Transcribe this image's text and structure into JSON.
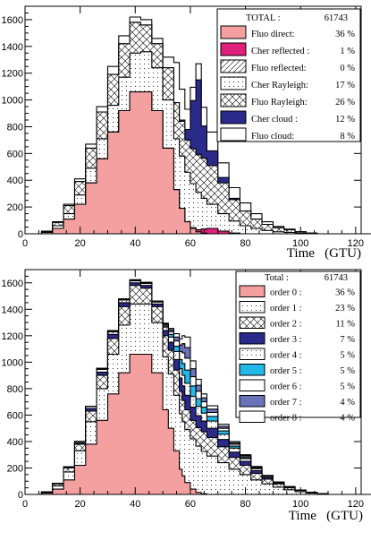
{
  "chart_data": [
    {
      "type": "area",
      "stacked": true,
      "xlabel": "Time   (GTU)",
      "ylabel": "",
      "xlim": [
        0,
        122
      ],
      "ylim": [
        0,
        1700
      ],
      "x_ticks": [
        0,
        20,
        40,
        60,
        80,
        100,
        120
      ],
      "y_ticks": [
        0,
        200,
        400,
        600,
        800,
        1000,
        1200,
        1400,
        1600
      ],
      "legend_header": {
        "label": "TOTAL :",
        "value": "61743"
      },
      "x": [
        6,
        10,
        14,
        18,
        22,
        26,
        30,
        34,
        38,
        42,
        46,
        50,
        54,
        56,
        58,
        60,
        62,
        64,
        66,
        70,
        74,
        78,
        82,
        86,
        90,
        94,
        98,
        102,
        106,
        110,
        114,
        118,
        122
      ],
      "series": [
        {
          "name": "Fluo direct:",
          "percent": "36 %",
          "color": "#f4a0a0",
          "pattern": "solid",
          "values": [
            10,
            40,
            110,
            220,
            380,
            560,
            760,
            920,
            1060,
            1060,
            920,
            640,
            330,
            190,
            90,
            40,
            15,
            5,
            0,
            0,
            0,
            0,
            0,
            0,
            0,
            0,
            0,
            0,
            0,
            0,
            0,
            0,
            0
          ]
        },
        {
          "name": "Cher reflected :",
          "percent": "1 %",
          "color": "#e0207a",
          "pattern": "solid",
          "values": [
            0,
            0,
            0,
            0,
            0,
            0,
            0,
            0,
            0,
            0,
            0,
            0,
            0,
            0,
            0,
            5,
            15,
            30,
            40,
            20,
            5,
            0,
            0,
            0,
            0,
            0,
            0,
            0,
            0,
            0,
            0,
            0,
            0
          ]
        },
        {
          "name": "Fluo reflected:",
          "percent": "0 %",
          "color": "#ffffff",
          "pattern": "hatch",
          "values": [
            0,
            0,
            0,
            0,
            0,
            0,
            0,
            0,
            0,
            0,
            0,
            0,
            0,
            0,
            0,
            0,
            0,
            0,
            0,
            0,
            0,
            0,
            0,
            0,
            0,
            0,
            0,
            0,
            0,
            0,
            0,
            0,
            0
          ]
        },
        {
          "name": "Cher Rayleigh:",
          "percent": "17 %",
          "color": "#ffffff",
          "pattern": "dots",
          "values": [
            5,
            20,
            40,
            70,
            110,
            150,
            200,
            250,
            290,
            300,
            320,
            360,
            380,
            390,
            370,
            330,
            280,
            230,
            180,
            130,
            90,
            60,
            40,
            25,
            15,
            10,
            5,
            0,
            0,
            0,
            0,
            0,
            0
          ]
        },
        {
          "name": "Fluo Rayleigh:",
          "percent": "26 %",
          "color": "#ffffff",
          "pattern": "crosshatch",
          "values": [
            5,
            25,
            60,
            100,
            150,
            200,
            230,
            250,
            230,
            200,
            180,
            240,
            270,
            260,
            240,
            260,
            280,
            300,
            290,
            230,
            160,
            110,
            70,
            45,
            30,
            20,
            10,
            5,
            0,
            0,
            0,
            0,
            0
          ]
        },
        {
          "name": "Cher cloud :",
          "percent": "12 %",
          "color": "#2a2a8a",
          "pattern": "solid",
          "values": [
            0,
            0,
            0,
            0,
            0,
            0,
            0,
            0,
            0,
            0,
            0,
            0,
            0,
            10,
            80,
            360,
            560,
            240,
            110,
            40,
            10,
            0,
            0,
            0,
            0,
            0,
            0,
            0,
            0,
            0,
            0,
            0,
            0
          ]
        },
        {
          "name": "Fluo cloud:",
          "percent": "8 %",
          "color": "#ffffff",
          "pattern": "solid",
          "values": [
            0,
            5,
            10,
            20,
            30,
            40,
            60,
            60,
            40,
            40,
            40,
            80,
            300,
            230,
            150,
            100,
            120,
            140,
            140,
            110,
            80,
            60,
            40,
            20,
            10,
            5,
            0,
            0,
            0,
            0,
            0,
            0,
            0
          ]
        }
      ]
    },
    {
      "type": "area",
      "stacked": true,
      "xlabel": "Time   (GTU)",
      "ylabel": "",
      "xlim": [
        0,
        122
      ],
      "ylim": [
        0,
        1700
      ],
      "x_ticks": [
        0,
        20,
        40,
        60,
        80,
        100,
        120
      ],
      "y_ticks": [
        0,
        200,
        400,
        600,
        800,
        1000,
        1200,
        1400,
        1600
      ],
      "legend_header": {
        "label": "Total :",
        "value": "61743"
      },
      "x": [
        6,
        10,
        14,
        18,
        22,
        26,
        30,
        34,
        38,
        42,
        46,
        50,
        52,
        54,
        56,
        57,
        58,
        60,
        62,
        64,
        66,
        70,
        74,
        78,
        82,
        86,
        90,
        94,
        98,
        102,
        106,
        110,
        114,
        118,
        122
      ],
      "series": [
        {
          "name": "order 0 :",
          "percent": "36 %",
          "color": "#f4a0a0",
          "pattern": "solid",
          "values": [
            10,
            40,
            110,
            220,
            380,
            560,
            760,
            920,
            1060,
            1060,
            920,
            640,
            500,
            330,
            190,
            140,
            90,
            40,
            15,
            5,
            0,
            0,
            0,
            0,
            0,
            0,
            0,
            0,
            0,
            0,
            0,
            0,
            0,
            0,
            0
          ]
        },
        {
          "name": "order 1 :",
          "percent": "23 %",
          "color": "#ffffff",
          "pattern": "dots",
          "values": [
            5,
            25,
            60,
            110,
            170,
            240,
            300,
            360,
            380,
            380,
            380,
            400,
            410,
            420,
            420,
            410,
            400,
            380,
            350,
            320,
            290,
            240,
            190,
            150,
            110,
            80,
            55,
            35,
            20,
            10,
            5,
            0,
            0,
            0,
            0
          ]
        },
        {
          "name": "order 2 :",
          "percent": "11 %",
          "color": "#ffffff",
          "pattern": "crosshatch",
          "values": [
            3,
            15,
            30,
            50,
            80,
            100,
            120,
            140,
            140,
            120,
            120,
            160,
            180,
            190,
            170,
            160,
            150,
            140,
            140,
            150,
            140,
            120,
            90,
            70,
            50,
            35,
            25,
            15,
            10,
            5,
            0,
            0,
            0,
            0,
            0
          ]
        },
        {
          "name": "order 3 :",
          "percent": "7 %",
          "color": "#2a2a8a",
          "pattern": "solid",
          "values": [
            0,
            2,
            5,
            10,
            20,
            25,
            30,
            30,
            20,
            20,
            20,
            40,
            60,
            80,
            100,
            110,
            110,
            100,
            90,
            80,
            70,
            55,
            40,
            30,
            20,
            12,
            8,
            5,
            3,
            0,
            0,
            0,
            0,
            0,
            0
          ]
        },
        {
          "name": "order 4 :",
          "percent": "5 %",
          "color": "#ffffff",
          "pattern": "dots",
          "values": [
            0,
            2,
            5,
            10,
            15,
            20,
            20,
            20,
            15,
            15,
            15,
            25,
            40,
            60,
            70,
            80,
            90,
            80,
            70,
            60,
            55,
            40,
            30,
            20,
            15,
            10,
            5,
            3,
            0,
            0,
            0,
            0,
            0,
            0,
            0
          ]
        },
        {
          "name": "order 5 :",
          "percent": "5 %",
          "color": "#22b8e8",
          "pattern": "solid",
          "values": [
            0,
            0,
            0,
            0,
            0,
            5,
            5,
            5,
            5,
            5,
            5,
            10,
            20,
            40,
            70,
            90,
            100,
            80,
            60,
            45,
            35,
            25,
            15,
            10,
            5,
            3,
            0,
            0,
            0,
            0,
            0,
            0,
            0,
            0,
            0
          ]
        },
        {
          "name": "order 6 :",
          "percent": "5 %",
          "color": "#ffffff",
          "pattern": "solid",
          "values": [
            0,
            0,
            0,
            0,
            0,
            3,
            3,
            3,
            3,
            3,
            3,
            10,
            20,
            40,
            60,
            80,
            90,
            70,
            55,
            40,
            30,
            20,
            15,
            10,
            5,
            3,
            0,
            0,
            0,
            0,
            0,
            0,
            0,
            0,
            0
          ]
        },
        {
          "name": "order 7 :",
          "percent": "4 %",
          "color": "#6a72b8",
          "pattern": "solid",
          "values": [
            0,
            0,
            0,
            0,
            0,
            0,
            0,
            0,
            0,
            0,
            0,
            5,
            15,
            30,
            50,
            70,
            80,
            60,
            45,
            30,
            25,
            15,
            10,
            5,
            3,
            0,
            0,
            0,
            0,
            0,
            0,
            0,
            0,
            0,
            0
          ]
        },
        {
          "name": "order 8 :",
          "percent": "4 %",
          "color": "#ffffff",
          "pattern": "solid",
          "values": [
            0,
            0,
            0,
            0,
            0,
            0,
            0,
            0,
            0,
            0,
            0,
            5,
            10,
            25,
            45,
            60,
            80,
            60,
            45,
            30,
            25,
            15,
            10,
            5,
            3,
            0,
            0,
            0,
            0,
            0,
            0,
            0,
            0,
            0,
            0
          ]
        }
      ]
    }
  ]
}
